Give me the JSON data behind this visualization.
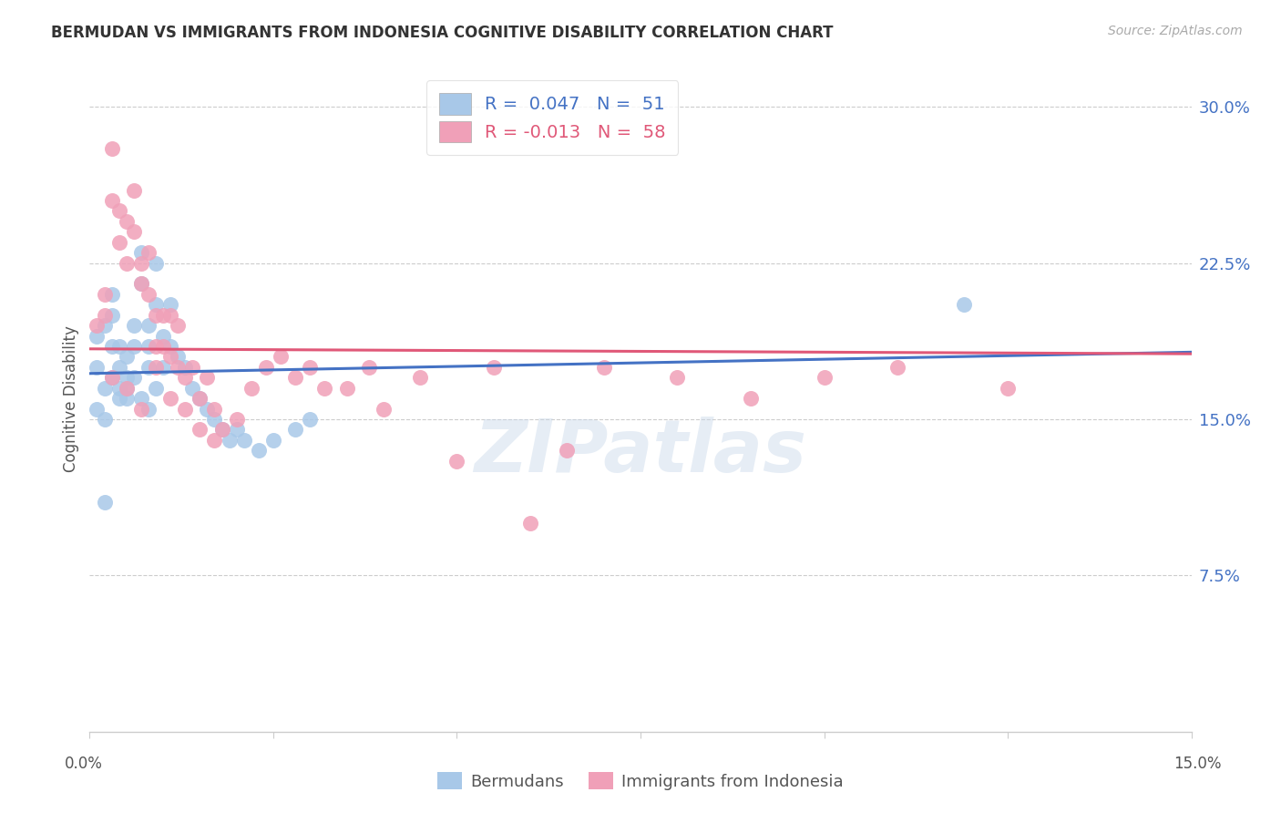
{
  "title": "BERMUDAN VS IMMIGRANTS FROM INDONESIA COGNITIVE DISABILITY CORRELATION CHART",
  "source": "Source: ZipAtlas.com",
  "ylabel": "Cognitive Disability",
  "xlim": [
    0.0,
    0.15
  ],
  "ylim": [
    0.0,
    0.32
  ],
  "yticks": [
    0.075,
    0.15,
    0.225,
    0.3
  ],
  "ytick_labels": [
    "7.5%",
    "15.0%",
    "22.5%",
    "30.0%"
  ],
  "watermark": "ZIPatlas",
  "color_blue": "#a8c8e8",
  "color_pink": "#f0a0b8",
  "line_blue": "#4472c4",
  "line_pink": "#e05878",
  "R_blue": 0.047,
  "R_pink": -0.013,
  "N_blue": 51,
  "N_pink": 58,
  "bermudans_x": [
    0.001,
    0.001,
    0.002,
    0.002,
    0.003,
    0.003,
    0.003,
    0.004,
    0.004,
    0.004,
    0.005,
    0.005,
    0.005,
    0.006,
    0.006,
    0.007,
    0.007,
    0.008,
    0.008,
    0.008,
    0.009,
    0.009,
    0.01,
    0.01,
    0.011,
    0.011,
    0.012,
    0.013,
    0.014,
    0.015,
    0.016,
    0.017,
    0.018,
    0.019,
    0.02,
    0.021,
    0.023,
    0.025,
    0.028,
    0.03,
    0.001,
    0.002,
    0.003,
    0.004,
    0.005,
    0.006,
    0.007,
    0.008,
    0.009,
    0.119,
    0.002
  ],
  "bermudans_y": [
    0.19,
    0.175,
    0.195,
    0.165,
    0.21,
    0.2,
    0.185,
    0.185,
    0.175,
    0.16,
    0.18,
    0.17,
    0.165,
    0.195,
    0.185,
    0.23,
    0.215,
    0.195,
    0.185,
    0.175,
    0.225,
    0.205,
    0.19,
    0.175,
    0.205,
    0.185,
    0.18,
    0.175,
    0.165,
    0.16,
    0.155,
    0.15,
    0.145,
    0.14,
    0.145,
    0.14,
    0.135,
    0.14,
    0.145,
    0.15,
    0.155,
    0.15,
    0.17,
    0.165,
    0.16,
    0.17,
    0.16,
    0.155,
    0.165,
    0.205,
    0.11
  ],
  "indonesia_x": [
    0.001,
    0.002,
    0.002,
    0.003,
    0.003,
    0.004,
    0.004,
    0.005,
    0.005,
    0.006,
    0.006,
    0.007,
    0.007,
    0.008,
    0.008,
    0.009,
    0.009,
    0.01,
    0.01,
    0.011,
    0.011,
    0.012,
    0.012,
    0.013,
    0.014,
    0.015,
    0.016,
    0.017,
    0.018,
    0.02,
    0.022,
    0.024,
    0.026,
    0.028,
    0.03,
    0.032,
    0.035,
    0.038,
    0.04,
    0.045,
    0.05,
    0.055,
    0.06,
    0.065,
    0.07,
    0.08,
    0.09,
    0.1,
    0.11,
    0.125,
    0.003,
    0.005,
    0.007,
    0.009,
    0.011,
    0.013,
    0.015,
    0.017
  ],
  "indonesia_y": [
    0.195,
    0.21,
    0.2,
    0.28,
    0.255,
    0.25,
    0.235,
    0.245,
    0.225,
    0.26,
    0.24,
    0.225,
    0.215,
    0.23,
    0.21,
    0.2,
    0.185,
    0.2,
    0.185,
    0.2,
    0.18,
    0.195,
    0.175,
    0.17,
    0.175,
    0.16,
    0.17,
    0.155,
    0.145,
    0.15,
    0.165,
    0.175,
    0.18,
    0.17,
    0.175,
    0.165,
    0.165,
    0.175,
    0.155,
    0.17,
    0.13,
    0.175,
    0.1,
    0.135,
    0.175,
    0.17,
    0.16,
    0.17,
    0.175,
    0.165,
    0.17,
    0.165,
    0.155,
    0.175,
    0.16,
    0.155,
    0.145,
    0.14
  ]
}
